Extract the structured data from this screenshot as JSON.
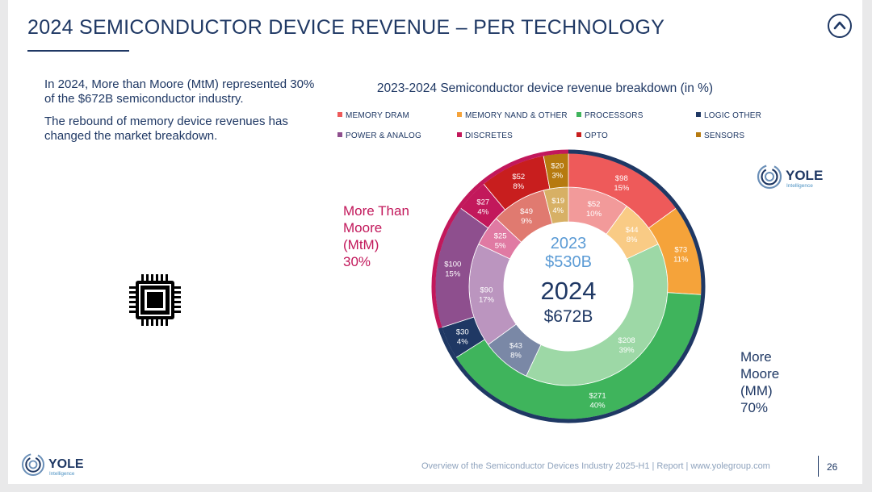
{
  "header": {
    "title": "2024 SEMICONDUCTOR DEVICE REVENUE – PER TECHNOLOGY"
  },
  "intro": {
    "p1": "In 2024, More than Moore (MtM) represented 30% of the $672B semiconductor industry.",
    "p2": "The rebound of memory device revenues has changed the market breakdown."
  },
  "annotations": {
    "mtm_label": "More Than Moore (MtM)",
    "mtm_pct": "30%",
    "mm_label": "More Moore (MM)",
    "mm_pct": "70%"
  },
  "logo": {
    "name": "YOLE",
    "sub": "Intelligence"
  },
  "footer": {
    "text": "Overview of the Semiconductor Devices Industry 2025-H1 | Report | www.yolegroup.com",
    "page": "26"
  },
  "colors": {
    "navy": "#1f3864",
    "mm_ring": "#1f3864",
    "mtm_ring": "#c2185b"
  },
  "chart_data": {
    "type": "donut",
    "title": "2023-2024 Semiconductor device revenue breakdown (in %)",
    "legend": [
      {
        "name": "MEMORY DRAM",
        "color": "#ee5a5a"
      },
      {
        "name": "MEMORY NAND & OTHER",
        "color": "#f5a33a"
      },
      {
        "name": "PROCESSORS",
        "color": "#3fb45c"
      },
      {
        "name": "LOGIC OTHER",
        "color": "#1f3864"
      },
      {
        "name": "POWER & ANALOG",
        "color": "#8e4f8e"
      },
      {
        "name": "DISCRETES",
        "color": "#c2185b"
      },
      {
        "name": "OPTO",
        "color": "#c81e1e"
      },
      {
        "name": "SENSORS",
        "color": "#b67a10"
      }
    ],
    "center": {
      "inner_year": "2023",
      "inner_total": "$530B",
      "outer_year": "2024",
      "outer_total": "$672B"
    },
    "series": [
      {
        "name": "2023",
        "ring": "inner",
        "total": 530,
        "items": [
          {
            "category": "MEMORY DRAM",
            "value": "$52",
            "pct": 10,
            "pct_label": "10%",
            "color": "#f29a9a"
          },
          {
            "category": "MEMORY NAND & OTHER",
            "value": "$44",
            "pct": 8,
            "pct_label": "8%",
            "color": "#f9cb85"
          },
          {
            "category": "PROCESSORS",
            "value": "$208",
            "pct": 39,
            "pct_label": "39%",
            "color": "#9dd8a6"
          },
          {
            "category": "LOGIC OTHER",
            "value": "$43",
            "pct": 8,
            "pct_label": "8%",
            "color": "#7a88a6"
          },
          {
            "category": "POWER & ANALOG",
            "value": "$90",
            "pct": 17,
            "pct_label": "17%",
            "color": "#bb95bf"
          },
          {
            "category": "DISCRETES",
            "value": "$25",
            "pct": 5,
            "pct_label": "5%",
            "color": "#e07aa3"
          },
          {
            "category": "OPTO",
            "value": "$49",
            "pct": 9,
            "pct_label": "9%",
            "color": "#e07a70"
          },
          {
            "category": "SENSORS",
            "value": "$19",
            "pct": 4,
            "pct_label": "4%",
            "color": "#d7b065"
          }
        ]
      },
      {
        "name": "2024",
        "ring": "outer",
        "total": 672,
        "items": [
          {
            "category": "MEMORY DRAM",
            "value": "$98",
            "pct": 15,
            "pct_label": "15%",
            "color": "#ee5a5a"
          },
          {
            "category": "MEMORY NAND & OTHER",
            "value": "$73",
            "pct": 11,
            "pct_label": "11%",
            "color": "#f5a33a"
          },
          {
            "category": "PROCESSORS",
            "value": "$271",
            "pct": 40,
            "pct_label": "40%",
            "color": "#3fb45c"
          },
          {
            "category": "LOGIC OTHER",
            "value": "$30",
            "pct": 4,
            "pct_label": "4%",
            "color": "#1f3864"
          },
          {
            "category": "POWER & ANALOG",
            "value": "$100",
            "pct": 15,
            "pct_label": "15%",
            "color": "#8e4f8e"
          },
          {
            "category": "DISCRETES",
            "value": "$27",
            "pct": 4,
            "pct_label": "4%",
            "color": "#c2185b"
          },
          {
            "category": "OPTO",
            "value": "$52",
            "pct": 8,
            "pct_label": "8%",
            "color": "#c81e1e"
          },
          {
            "category": "SENSORS",
            "value": "$20",
            "pct": 3,
            "pct_label": "3%",
            "color": "#b67a10"
          }
        ]
      }
    ],
    "groups": [
      {
        "name": "More Moore (MM)",
        "share": 70,
        "categories": [
          "MEMORY DRAM",
          "MEMORY NAND & OTHER",
          "PROCESSORS",
          "LOGIC OTHER"
        ]
      },
      {
        "name": "More Than Moore (MtM)",
        "share": 30,
        "categories": [
          "POWER & ANALOG",
          "DISCRETES",
          "OPTO",
          "SENSORS"
        ]
      }
    ]
  }
}
